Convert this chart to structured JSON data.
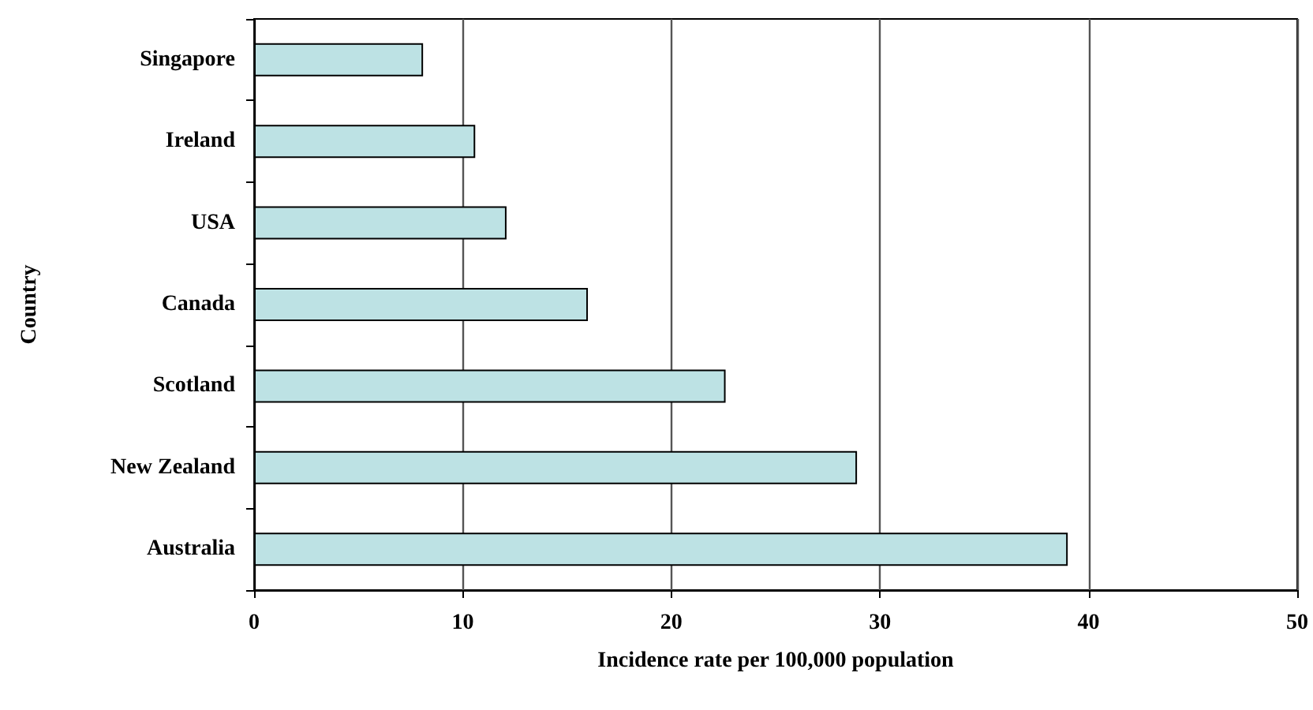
{
  "chart_data": {
    "type": "bar",
    "orientation": "horizontal",
    "categories": [
      "Singapore",
      "Ireland",
      "USA",
      "Canada",
      "Scotland",
      "New Zealand",
      "Australia"
    ],
    "values": [
      8.1,
      10.6,
      12.1,
      16.0,
      22.6,
      28.9,
      39.0
    ],
    "color": "#bde2e4",
    "xlim": [
      0,
      50
    ],
    "xticks": [
      0,
      10,
      20,
      30,
      40,
      50
    ],
    "xlabel": "Incidence rate per 100,000 population",
    "ylabel": "Country",
    "grid": "x"
  }
}
